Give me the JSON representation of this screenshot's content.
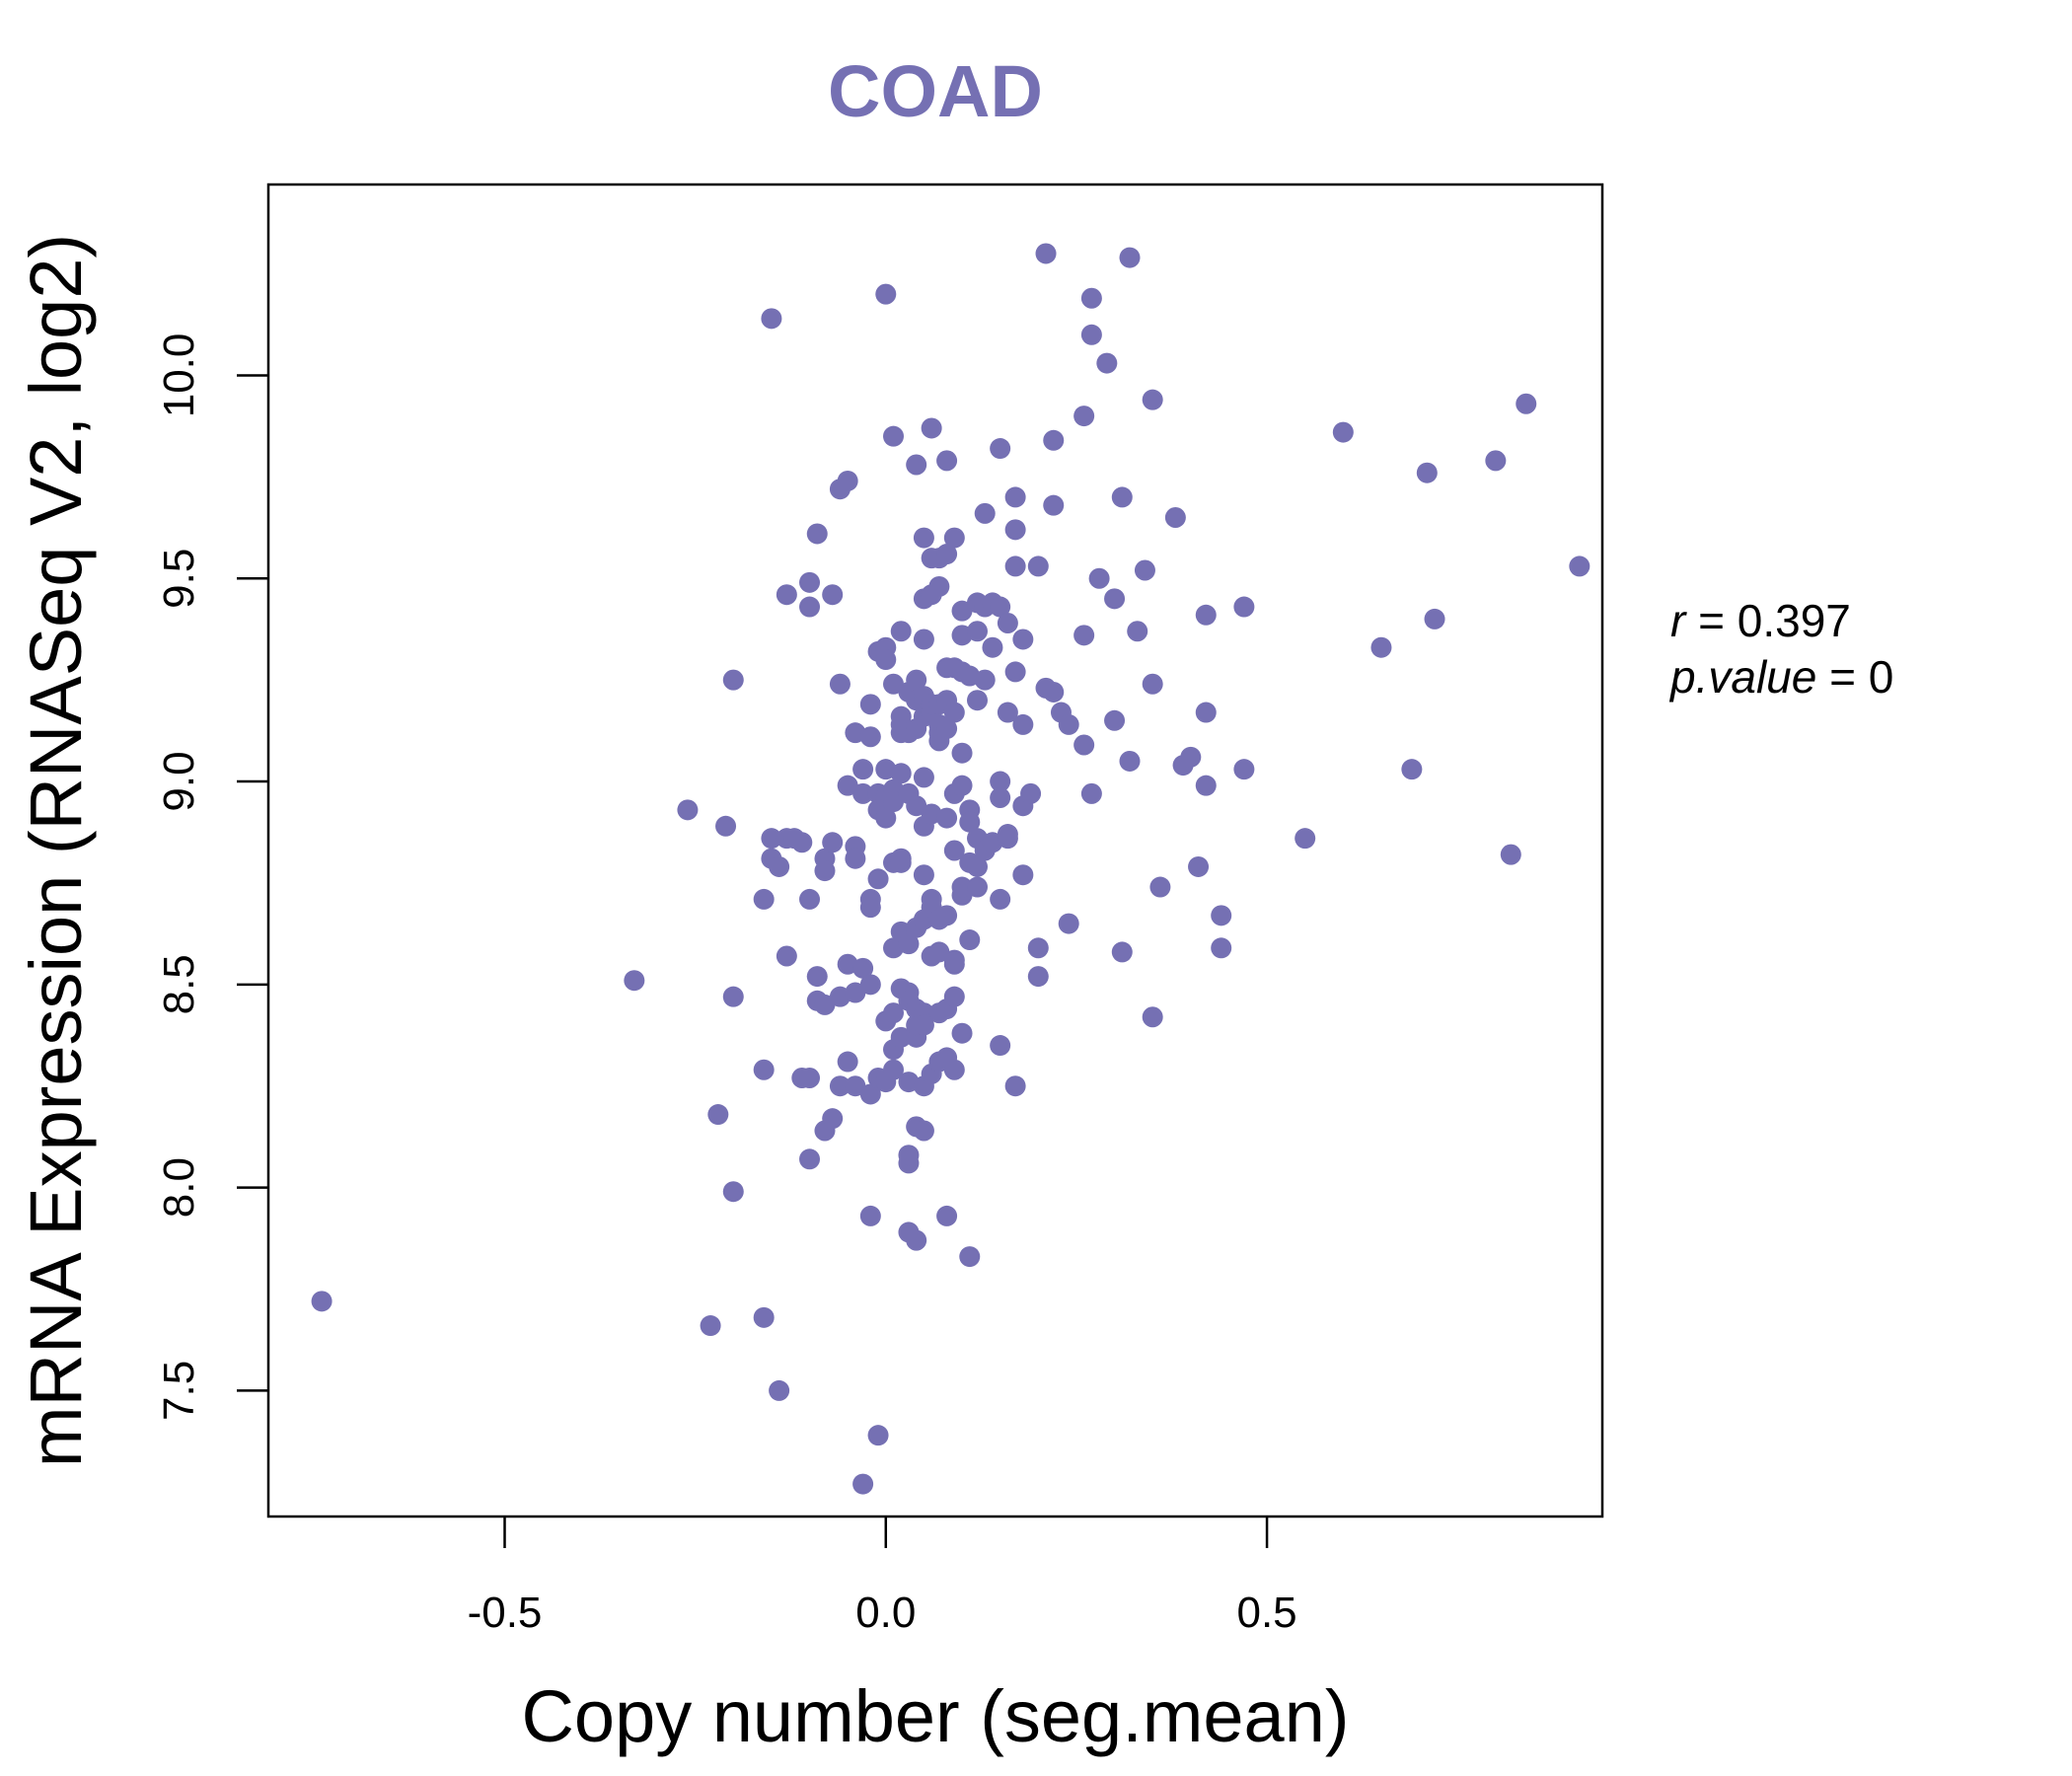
{
  "chart_data": {
    "type": "scatter",
    "title": "COAD",
    "xlabel": "Copy number (seg.mean)",
    "ylabel": "mRNA Expression (RNASeq V2, log2)",
    "xlim": [
      -0.81,
      0.94
    ],
    "ylim": [
      7.19,
      10.47
    ],
    "xticks": [
      -0.5,
      0.0,
      0.5
    ],
    "xtick_labels": [
      "-0.5",
      "0.0",
      "0.5"
    ],
    "yticks": [
      7.5,
      8.0,
      8.5,
      9.0,
      9.5,
      10.0
    ],
    "ytick_labels": [
      "7.5",
      "8.0",
      "8.5",
      "9.0",
      "9.5",
      "10.0"
    ],
    "grid": false,
    "stats": {
      "r_label": "r",
      "r_value": "0.397",
      "p_label": "p.value",
      "p_value": "0"
    },
    "colors": {
      "points": "#7570b3",
      "title": "#7570b3",
      "axis": "#000000"
    },
    "series": [
      {
        "points": [
          [
            -0.74,
            7.72
          ],
          [
            -0.33,
            8.51
          ],
          [
            -0.26,
            8.93
          ],
          [
            -0.23,
            7.66
          ],
          [
            -0.22,
            8.18
          ],
          [
            -0.21,
            8.89
          ],
          [
            -0.2,
            9.25
          ],
          [
            -0.2,
            8.47
          ],
          [
            -0.2,
            7.99
          ],
          [
            -0.16,
            7.68
          ],
          [
            -0.16,
            8.29
          ],
          [
            -0.16,
            8.71
          ],
          [
            -0.15,
            8.86
          ],
          [
            -0.15,
            8.81
          ],
          [
            -0.15,
            10.14
          ],
          [
            -0.14,
            8.79
          ],
          [
            -0.14,
            7.5
          ],
          [
            -0.13,
            8.86
          ],
          [
            -0.13,
            8.57
          ],
          [
            -0.13,
            9.46
          ],
          [
            -0.12,
            8.86
          ],
          [
            -0.11,
            8.85
          ],
          [
            -0.11,
            8.27
          ],
          [
            -0.1,
            8.27
          ],
          [
            -0.1,
            8.07
          ],
          [
            -0.1,
            8.71
          ],
          [
            -0.1,
            9.49
          ],
          [
            -0.1,
            9.43
          ],
          [
            -0.09,
            8.46
          ],
          [
            -0.09,
            8.52
          ],
          [
            -0.09,
            9.61
          ],
          [
            -0.08,
            8.81
          ],
          [
            -0.08,
            8.78
          ],
          [
            -0.08,
            8.14
          ],
          [
            -0.08,
            8.45
          ],
          [
            -0.07,
            8.17
          ],
          [
            -0.07,
            9.46
          ],
          [
            -0.07,
            8.85
          ],
          [
            -0.06,
            8.25
          ],
          [
            -0.06,
            9.24
          ],
          [
            -0.06,
            9.72
          ],
          [
            -0.06,
            8.47
          ],
          [
            -0.05,
            8.99
          ],
          [
            -0.05,
            8.31
          ],
          [
            -0.05,
            8.55
          ],
          [
            -0.05,
            9.74
          ],
          [
            -0.04,
            8.25
          ],
          [
            -0.04,
            8.84
          ],
          [
            -0.04,
            8.81
          ],
          [
            -0.04,
            8.48
          ],
          [
            -0.04,
            9.12
          ],
          [
            -0.03,
            8.97
          ],
          [
            -0.03,
            8.54
          ],
          [
            -0.03,
            7.27
          ],
          [
            -0.03,
            9.03
          ],
          [
            -0.02,
            8.71
          ],
          [
            -0.02,
            8.69
          ],
          [
            -0.02,
            8.23
          ],
          [
            -0.02,
            8.5
          ],
          [
            -0.02,
            7.93
          ],
          [
            -0.02,
            9.19
          ],
          [
            -0.02,
            9.11
          ],
          [
            -0.01,
            8.93
          ],
          [
            -0.01,
            8.97
          ],
          [
            -0.01,
            8.27
          ],
          [
            -0.01,
            8.76
          ],
          [
            -0.01,
            7.39
          ],
          [
            -0.01,
            9.32
          ],
          [
            0.0,
            9.03
          ],
          [
            0.0,
            8.41
          ],
          [
            0.0,
            8.96
          ],
          [
            0.0,
            9.33
          ],
          [
            0.0,
            10.2
          ],
          [
            0.0,
            8.26
          ],
          [
            0.0,
            9.3
          ],
          [
            0.0,
            8.91
          ],
          [
            0.01,
            8.98
          ],
          [
            0.01,
            9.24
          ],
          [
            0.01,
            9.85
          ],
          [
            0.01,
            8.59
          ],
          [
            0.01,
            8.8
          ],
          [
            0.01,
            8.43
          ],
          [
            0.01,
            8.29
          ],
          [
            0.01,
            8.34
          ],
          [
            0.01,
            8.95
          ],
          [
            0.02,
            9.02
          ],
          [
            0.02,
            9.16
          ],
          [
            0.02,
            8.37
          ],
          [
            0.02,
            8.8
          ],
          [
            0.02,
            9.37
          ],
          [
            0.02,
            8.49
          ],
          [
            0.02,
            8.63
          ],
          [
            0.02,
            9.12
          ],
          [
            0.02,
            9.14
          ],
          [
            0.02,
            8.81
          ],
          [
            0.03,
            9.22
          ],
          [
            0.03,
            8.48
          ],
          [
            0.03,
            8.46
          ],
          [
            0.03,
            8.26
          ],
          [
            0.03,
            8.06
          ],
          [
            0.03,
            7.89
          ],
          [
            0.03,
            8.08
          ],
          [
            0.03,
            9.12
          ],
          [
            0.03,
            8.6
          ],
          [
            0.03,
            8.97
          ],
          [
            0.04,
            9.2
          ],
          [
            0.04,
            9.25
          ],
          [
            0.04,
            8.37
          ],
          [
            0.04,
            8.44
          ],
          [
            0.04,
            8.64
          ],
          [
            0.04,
            9.78
          ],
          [
            0.04,
            8.15
          ],
          [
            0.04,
            8.4
          ],
          [
            0.04,
            7.87
          ],
          [
            0.04,
            9.13
          ],
          [
            0.04,
            8.94
          ],
          [
            0.05,
            9.2
          ],
          [
            0.05,
            9.16
          ],
          [
            0.05,
            8.89
          ],
          [
            0.05,
            9.01
          ],
          [
            0.05,
            9.21
          ],
          [
            0.05,
            8.43
          ],
          [
            0.05,
            8.77
          ],
          [
            0.05,
            9.45
          ],
          [
            0.05,
            8.14
          ],
          [
            0.05,
            8.25
          ],
          [
            0.05,
            9.35
          ],
          [
            0.05,
            9.6
          ],
          [
            0.05,
            8.66
          ],
          [
            0.05,
            8.4
          ],
          [
            0.06,
            9.55
          ],
          [
            0.06,
            8.28
          ],
          [
            0.06,
            9.17
          ],
          [
            0.06,
            8.69
          ],
          [
            0.06,
            8.71
          ],
          [
            0.06,
            8.92
          ],
          [
            0.06,
            9.19
          ],
          [
            0.06,
            9.87
          ],
          [
            0.06,
            8.57
          ],
          [
            0.06,
            9.46
          ],
          [
            0.07,
            9.48
          ],
          [
            0.07,
            9.55
          ],
          [
            0.07,
            9.19
          ],
          [
            0.07,
            8.58
          ],
          [
            0.07,
            8.31
          ],
          [
            0.07,
            8.43
          ],
          [
            0.07,
            9.1
          ],
          [
            0.07,
            9.12
          ],
          [
            0.07,
            9.14
          ],
          [
            0.07,
            8.66
          ],
          [
            0.08,
            9.2
          ],
          [
            0.08,
            9.13
          ],
          [
            0.08,
            9.56
          ],
          [
            0.08,
            8.91
          ],
          [
            0.08,
            8.44
          ],
          [
            0.08,
            8.32
          ],
          [
            0.08,
            7.93
          ],
          [
            0.08,
            9.28
          ],
          [
            0.08,
            8.67
          ],
          [
            0.08,
            9.79
          ],
          [
            0.09,
            8.97
          ],
          [
            0.09,
            8.56
          ],
          [
            0.09,
            9.17
          ],
          [
            0.09,
            8.55
          ],
          [
            0.09,
            8.47
          ],
          [
            0.09,
            8.83
          ],
          [
            0.09,
            8.29
          ],
          [
            0.09,
            9.28
          ],
          [
            0.09,
            9.6
          ],
          [
            0.1,
            9.27
          ],
          [
            0.1,
            8.72
          ],
          [
            0.1,
            8.38
          ],
          [
            0.1,
            8.99
          ],
          [
            0.1,
            9.36
          ],
          [
            0.1,
            8.74
          ],
          [
            0.1,
            9.07
          ],
          [
            0.1,
            9.42
          ],
          [
            0.11,
            8.93
          ],
          [
            0.11,
            9.26
          ],
          [
            0.11,
            8.61
          ],
          [
            0.11,
            8.8
          ],
          [
            0.11,
            7.83
          ],
          [
            0.11,
            8.9
          ],
          [
            0.12,
            8.86
          ],
          [
            0.12,
            8.79
          ],
          [
            0.12,
            8.74
          ],
          [
            0.12,
            9.2
          ],
          [
            0.12,
            9.37
          ],
          [
            0.12,
            9.44
          ],
          [
            0.13,
            9.66
          ],
          [
            0.13,
            9.25
          ],
          [
            0.13,
            8.83
          ],
          [
            0.13,
            9.43
          ],
          [
            0.14,
            9.33
          ],
          [
            0.14,
            8.85
          ],
          [
            0.14,
            9.44
          ],
          [
            0.15,
            9.82
          ],
          [
            0.15,
            8.71
          ],
          [
            0.15,
            8.35
          ],
          [
            0.15,
            9.0
          ],
          [
            0.15,
            8.96
          ],
          [
            0.15,
            9.43
          ],
          [
            0.16,
            8.86
          ],
          [
            0.16,
            9.17
          ],
          [
            0.16,
            8.87
          ],
          [
            0.16,
            9.39
          ],
          [
            0.17,
            9.62
          ],
          [
            0.17,
            9.53
          ],
          [
            0.17,
            8.25
          ],
          [
            0.17,
            9.27
          ],
          [
            0.17,
            9.7
          ],
          [
            0.18,
            9.14
          ],
          [
            0.18,
            8.94
          ],
          [
            0.18,
            8.77
          ],
          [
            0.18,
            9.35
          ],
          [
            0.19,
            8.97
          ],
          [
            0.2,
            9.53
          ],
          [
            0.2,
            8.52
          ],
          [
            0.2,
            8.59
          ],
          [
            0.21,
            9.23
          ],
          [
            0.21,
            10.3
          ],
          [
            0.22,
            9.68
          ],
          [
            0.22,
            9.84
          ],
          [
            0.22,
            9.22
          ],
          [
            0.23,
            9.17
          ],
          [
            0.24,
            9.14
          ],
          [
            0.24,
            8.65
          ],
          [
            0.26,
            9.09
          ],
          [
            0.26,
            9.9
          ],
          [
            0.26,
            9.36
          ],
          [
            0.27,
            8.97
          ],
          [
            0.27,
            10.19
          ],
          [
            0.27,
            10.1
          ],
          [
            0.28,
            9.5
          ],
          [
            0.29,
            10.03
          ],
          [
            0.3,
            9.15
          ],
          [
            0.3,
            9.45
          ],
          [
            0.31,
            8.58
          ],
          [
            0.31,
            9.7
          ],
          [
            0.32,
            10.29
          ],
          [
            0.32,
            9.05
          ],
          [
            0.33,
            9.37
          ],
          [
            0.34,
            9.52
          ],
          [
            0.35,
            9.24
          ],
          [
            0.35,
            9.94
          ],
          [
            0.35,
            8.42
          ],
          [
            0.36,
            8.74
          ],
          [
            0.38,
            9.65
          ],
          [
            0.39,
            9.04
          ],
          [
            0.4,
            9.06
          ],
          [
            0.41,
            8.79
          ],
          [
            0.42,
            9.41
          ],
          [
            0.42,
            9.17
          ],
          [
            0.42,
            8.99
          ],
          [
            0.44,
            8.67
          ],
          [
            0.44,
            8.59
          ],
          [
            0.47,
            9.43
          ],
          [
            0.47,
            9.03
          ],
          [
            0.55,
            8.86
          ],
          [
            0.6,
            9.86
          ],
          [
            0.65,
            9.33
          ],
          [
            0.69,
            9.03
          ],
          [
            0.71,
            9.76
          ],
          [
            0.72,
            9.4
          ],
          [
            0.8,
            9.79
          ],
          [
            0.82,
            8.82
          ],
          [
            0.84,
            9.93
          ],
          [
            0.91,
            9.53
          ]
        ]
      }
    ]
  }
}
